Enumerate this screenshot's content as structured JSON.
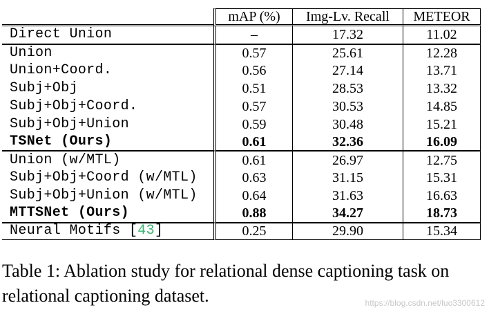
{
  "table": {
    "headers": [
      "",
      "mAP (%)",
      "Img-Lv. Recall",
      "METEOR"
    ],
    "sections": [
      [
        {
          "name": "Direct Union",
          "map": "–",
          "recall": "17.32",
          "meteor": "11.02",
          "bold": false
        }
      ],
      [
        {
          "name": "Union",
          "map": "0.57",
          "recall": "25.61",
          "meteor": "12.28",
          "bold": false
        },
        {
          "name": "Union+Coord.",
          "map": "0.56",
          "recall": "27.14",
          "meteor": "13.71",
          "bold": false
        },
        {
          "name": "Subj+Obj",
          "map": "0.51",
          "recall": "28.53",
          "meteor": "13.32",
          "bold": false
        },
        {
          "name": "Subj+Obj+Coord.",
          "map": "0.57",
          "recall": "30.53",
          "meteor": "14.85",
          "bold": false
        },
        {
          "name": "Subj+Obj+Union",
          "map": "0.59",
          "recall": "30.48",
          "meteor": "15.21",
          "bold": false
        },
        {
          "name": "TSNet (Ours)",
          "map": "0.61",
          "recall": "32.36",
          "meteor": "16.09",
          "bold": true
        }
      ],
      [
        {
          "name": "Union (w/MTL)",
          "map": "0.61",
          "recall": "26.97",
          "meteor": "12.75",
          "bold": false
        },
        {
          "name": "Subj+Obj+Coord (w/MTL)",
          "map": "0.63",
          "recall": "31.15",
          "meteor": "15.31",
          "bold": false
        },
        {
          "name": "Subj+Obj+Union (w/MTL)",
          "map": "0.64",
          "recall": "31.63",
          "meteor": "16.63",
          "bold": false
        },
        {
          "name": "MTTSNet (Ours)",
          "map": "0.88",
          "recall": "34.27",
          "meteor": "18.73",
          "bold": true
        }
      ],
      [
        {
          "name": "Neural Motifs [",
          "cite": "43",
          "name_end": "]",
          "map": "0.25",
          "recall": "29.90",
          "meteor": "15.34",
          "bold": false
        }
      ]
    ]
  },
  "caption": "Table 1: Ablation study for relational dense captioning task on relational captioning dataset.",
  "watermark": "https://blog.csdn.net/luo3300612",
  "colors": {
    "citation": "#3cb371",
    "watermark": "#c8c8c8"
  }
}
